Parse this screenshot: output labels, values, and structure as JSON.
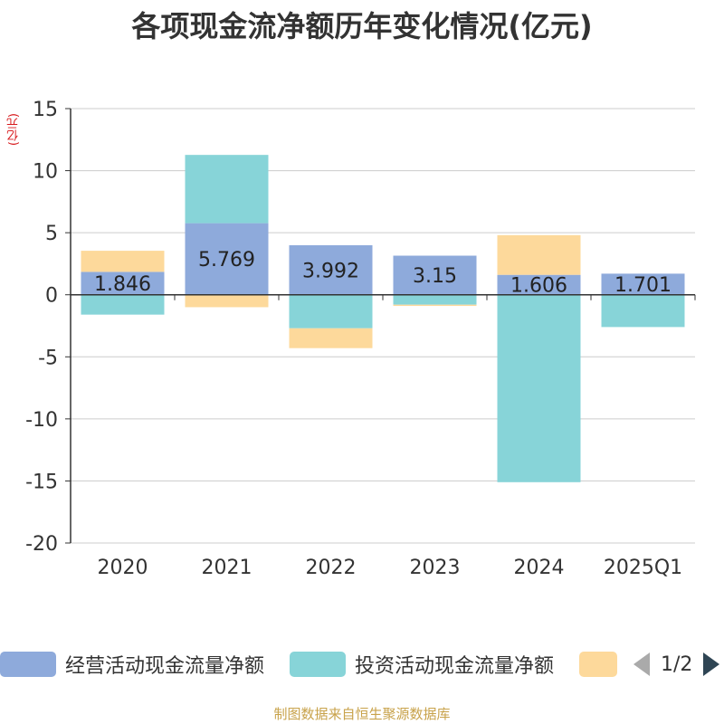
{
  "title": "各项现金流净额历年变化情况(亿元)",
  "unit_label": "(亿元)",
  "legend": {
    "items": [
      {
        "label": "经营活动现金流量净额",
        "color": "#8eaadb"
      },
      {
        "label": "投资活动现金流量净额",
        "color": "#87d4d8"
      },
      {
        "label": "",
        "color": "#fdd99b"
      }
    ],
    "page": "1/2"
  },
  "source": "制图数据来自恒生聚源数据库",
  "chart_data": {
    "type": "bar",
    "stacked": true,
    "categories": [
      "2020",
      "2021",
      "2022",
      "2023",
      "2024",
      "2025Q1"
    ],
    "ylim": [
      -20,
      15
    ],
    "yticks": [
      15,
      10,
      5,
      0,
      -5,
      -10,
      -15,
      -20
    ],
    "ylabel": "(亿元)",
    "grid": true,
    "legend_position": "bottom",
    "series": [
      {
        "name": "经营活动现金流量净额",
        "color": "#8eaadb",
        "values": [
          1.846,
          5.769,
          3.992,
          3.15,
          1.606,
          1.701
        ],
        "labels": [
          "1.846",
          "5.769",
          "3.992",
          "3.15",
          "1.606",
          "1.701"
        ]
      },
      {
        "name": "投资活动现金流量净额",
        "color": "#87d4d8",
        "values": [
          -1.6,
          5.5,
          -2.7,
          -0.8,
          -15.1,
          -2.6
        ]
      },
      {
        "color": "#fdd99b",
        "values": [
          1.7,
          -1.0,
          -1.6,
          -0.1,
          3.2,
          0
        ]
      }
    ]
  }
}
